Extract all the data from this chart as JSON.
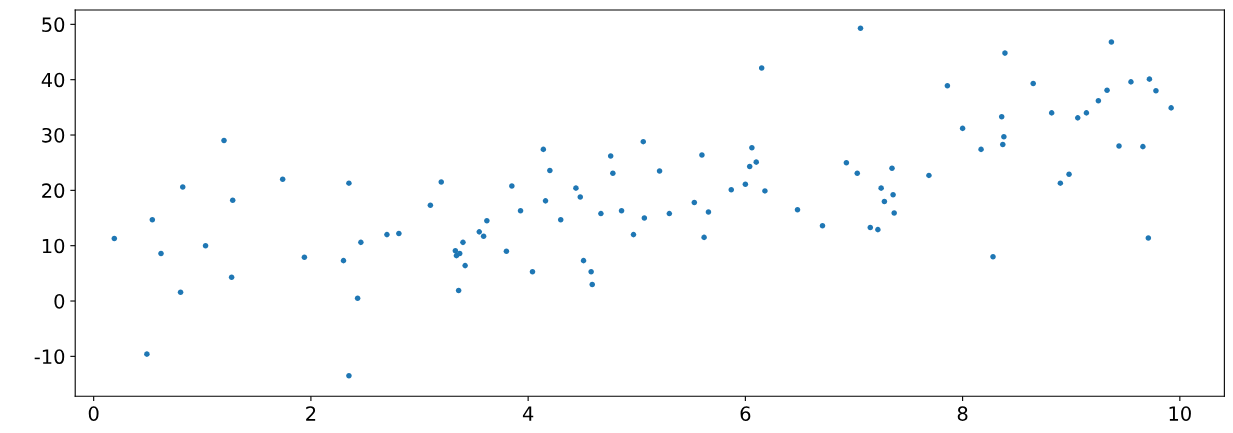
{
  "chart_data": {
    "type": "scatter",
    "xlim": [
      -0.17,
      10.41
    ],
    "ylim": [
      -17.2,
      52.6
    ],
    "xticks": [
      0,
      2,
      4,
      6,
      8,
      10
    ],
    "yticks": [
      -10,
      0,
      10,
      20,
      30,
      40,
      50
    ],
    "grid": false,
    "marker": "circle",
    "series": [
      {
        "color": "#1f77b4",
        "x": [
          0.19,
          0.49,
          0.54,
          0.62,
          0.8,
          0.82,
          1.03,
          1.2,
          1.27,
          1.28,
          1.74,
          1.94,
          2.3,
          2.35,
          2.35,
          2.43,
          2.46,
          2.7,
          2.81,
          3.1,
          3.2,
          3.33,
          3.34,
          3.36,
          3.37,
          3.4,
          3.42,
          3.55,
          3.59,
          3.62,
          3.8,
          3.85,
          3.93,
          4.04,
          4.14,
          4.16,
          4.2,
          4.3,
          4.44,
          4.48,
          4.51,
          4.58,
          4.59,
          4.67,
          4.76,
          4.78,
          4.86,
          4.97,
          5.06,
          5.07,
          5.21,
          5.3,
          5.53,
          5.6,
          5.62,
          5.66,
          5.87,
          6.0,
          6.04,
          6.06,
          6.1,
          6.15,
          6.18,
          6.48,
          6.71,
          6.93,
          7.03,
          7.06,
          7.15,
          7.22,
          7.25,
          7.28,
          7.35,
          7.36,
          7.37,
          7.69,
          7.86,
          8.0,
          8.17,
          8.28,
          8.36,
          8.37,
          8.38,
          8.39,
          8.65,
          8.82,
          8.9,
          8.98,
          9.06,
          9.14,
          9.25,
          9.33,
          9.37,
          9.44,
          9.55,
          9.66,
          9.71,
          9.72,
          9.78,
          9.92
        ],
        "values": [
          11.3,
          -9.6,
          14.7,
          8.6,
          1.6,
          20.6,
          10.0,
          29.0,
          4.3,
          18.2,
          22.0,
          7.9,
          7.3,
          21.3,
          -13.5,
          0.5,
          10.6,
          12.0,
          12.2,
          17.3,
          21.5,
          9.1,
          8.2,
          1.9,
          8.6,
          10.6,
          6.4,
          12.5,
          11.7,
          14.5,
          9.0,
          20.8,
          16.3,
          5.3,
          27.4,
          18.1,
          23.6,
          14.7,
          20.4,
          18.8,
          7.3,
          5.3,
          3.0,
          15.8,
          26.2,
          23.1,
          16.3,
          12.0,
          28.8,
          15.0,
          23.5,
          15.8,
          17.8,
          26.4,
          11.5,
          16.1,
          20.1,
          21.1,
          24.3,
          27.7,
          25.1,
          42.1,
          19.9,
          16.5,
          13.6,
          25.0,
          23.1,
          49.3,
          13.3,
          12.9,
          20.4,
          18.0,
          24.0,
          19.2,
          15.9,
          22.7,
          38.9,
          31.2,
          27.4,
          8.0,
          33.3,
          28.3,
          29.7,
          44.8,
          39.3,
          34.0,
          21.3,
          22.9,
          33.1,
          34.0,
          36.2,
          38.1,
          46.8,
          28.0,
          39.6,
          27.9,
          11.4,
          40.1,
          38.0,
          34.9
        ]
      }
    ]
  }
}
